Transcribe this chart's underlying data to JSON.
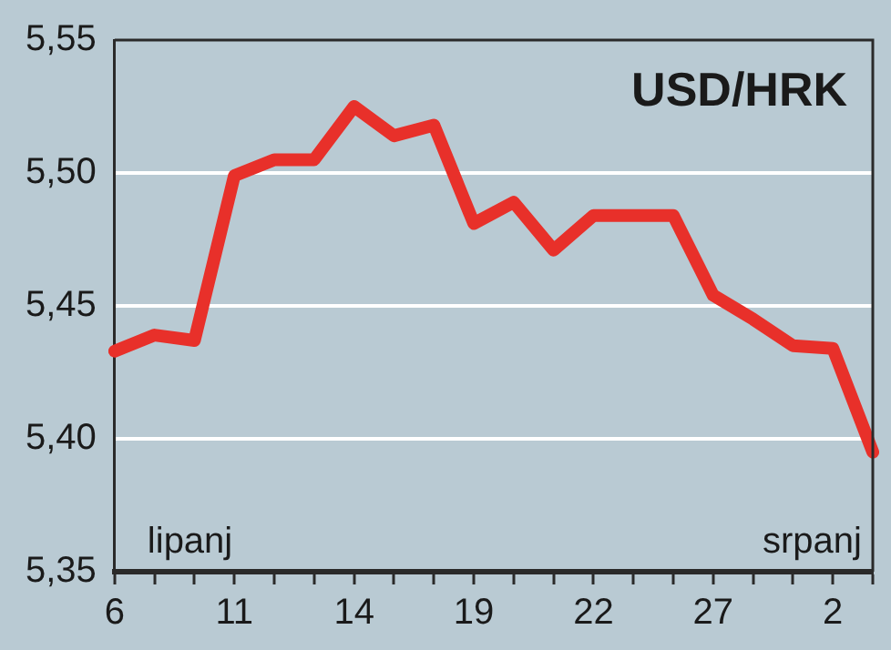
{
  "chart_data": {
    "type": "line",
    "title": "USD/HRK",
    "categories": [
      "6",
      null,
      null,
      "11",
      null,
      null,
      "14",
      null,
      null,
      "19",
      null,
      null,
      "22",
      null,
      null,
      "27",
      null,
      null,
      "2",
      null
    ],
    "series": [
      {
        "color": "#e8302a",
        "values": [
          5.433,
          5.439,
          5.437,
          5.499,
          5.505,
          5.505,
          5.525,
          5.514,
          5.518,
          5.481,
          5.489,
          5.471,
          5.484,
          5.484,
          5.484,
          5.454,
          5.445,
          5.435,
          5.434,
          5.395
        ]
      }
    ],
    "ylim": [
      5.35,
      5.55
    ],
    "yticks": [
      {
        "value": 5.35,
        "label": "5,35"
      },
      {
        "value": 5.4,
        "label": "5,40"
      },
      {
        "value": 5.45,
        "label": "5,45"
      },
      {
        "value": 5.5,
        "label": "5,50"
      },
      {
        "value": 5.55,
        "label": "5,55"
      }
    ],
    "annotations": [
      "lipanj",
      "srpanj"
    ],
    "grid": "y",
    "legend": false,
    "marker": "none",
    "line_style": "solid"
  }
}
